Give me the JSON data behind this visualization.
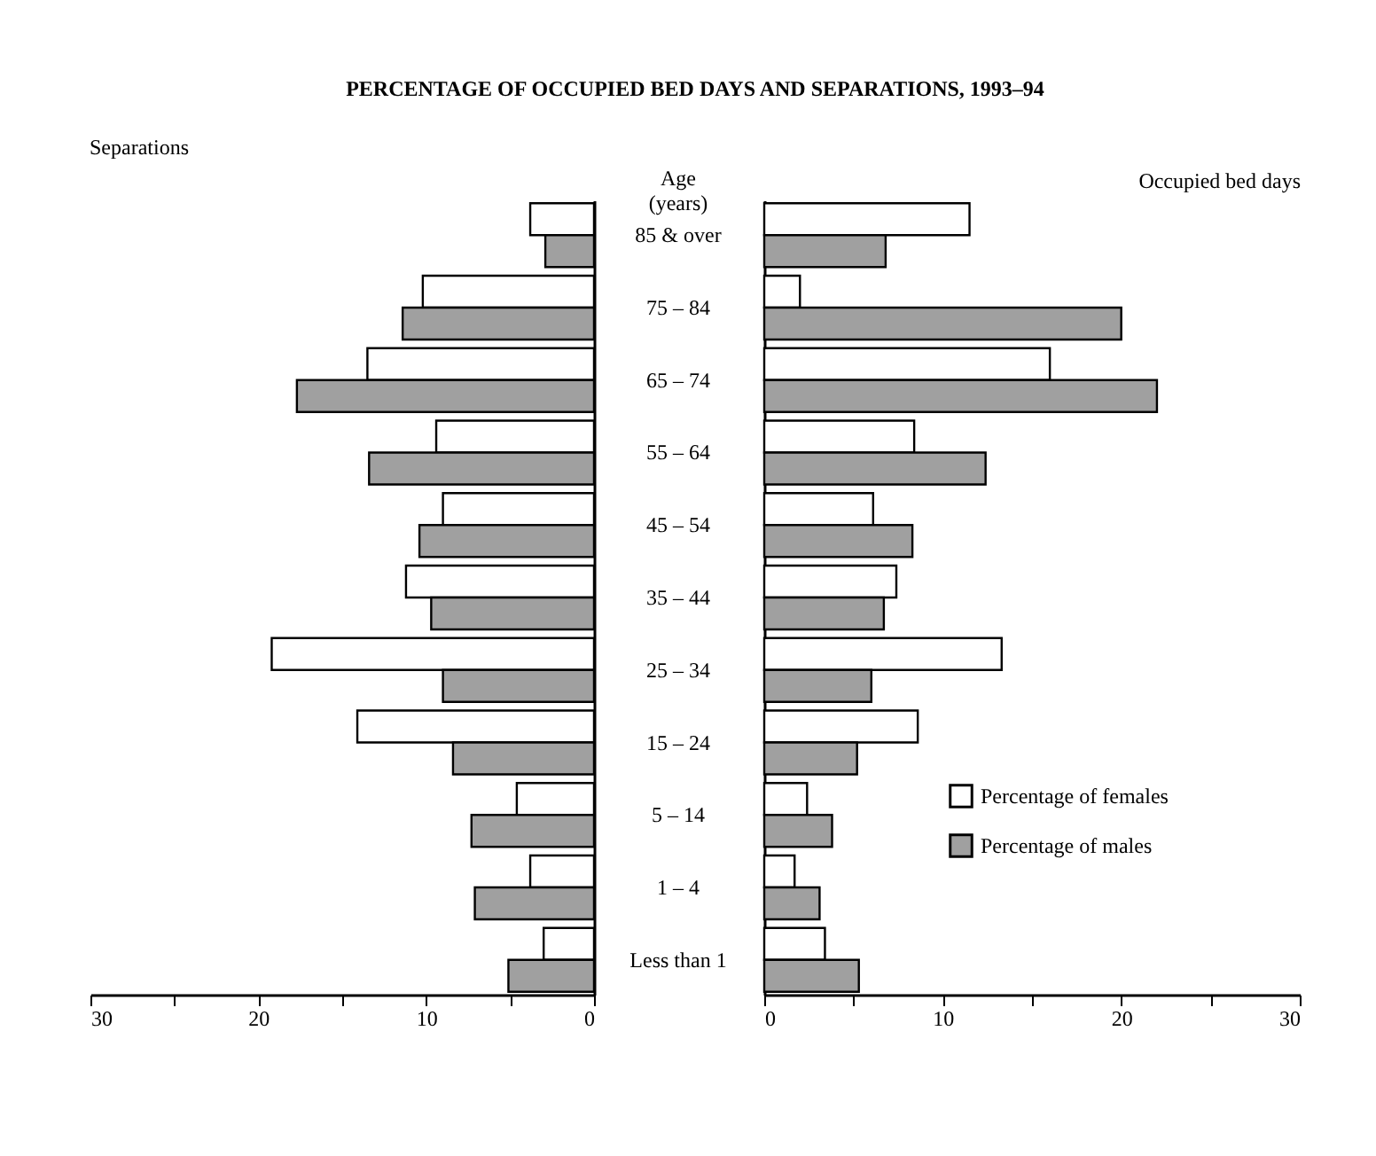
{
  "chart_data": [
    {
      "type": "bar",
      "orientation": "horizontal",
      "title": "PERCENTAGE OF OCCUPIED BED DAYS AND SEPARATIONS, 1993–94",
      "subtitle": "Separations",
      "ylabel": "Age (years)",
      "categories": [
        "85 & over",
        "75 – 84",
        "65 – 74",
        "55 – 64",
        "45 – 54",
        "35 – 44",
        "25 – 34",
        "15 – 24",
        "5 – 14",
        "1 – 4",
        "Less than 1"
      ],
      "series": [
        {
          "color": "#ffffff",
          "values": [
            3.8,
            10.2,
            13.5,
            9.4,
            9.0,
            11.2,
            19.2,
            14.1,
            4.6,
            3.8,
            3.0
          ]
        },
        {
          "color": "#a0a0a0",
          "values": [
            2.9,
            11.4,
            17.7,
            13.4,
            10.4,
            9.7,
            9.0,
            8.4,
            7.3,
            7.1,
            5.1
          ]
        }
      ],
      "xlim": [
        30,
        0
      ],
      "xticks": [
        30,
        {
          "value": 25,
          "label": null
        },
        20,
        {
          "value": 15,
          "label": null
        },
        10,
        {
          "value": 5,
          "label": null
        },
        0
      ]
    },
    {
      "type": "bar",
      "orientation": "horizontal",
      "subtitle": "Occupied bed days",
      "categories": [
        null,
        null,
        null,
        null,
        null,
        null,
        null,
        null,
        null,
        null,
        null
      ],
      "tick_labels": "x",
      "series": [
        {
          "name": "Percentage of females",
          "color": "#ffffff",
          "values": [
            11.5,
            2.0,
            16.0,
            8.4,
            6.1,
            7.4,
            13.3,
            8.6,
            2.4,
            1.7,
            3.4
          ]
        },
        {
          "name": "Percentage of males",
          "color": "#a0a0a0",
          "values": [
            6.8,
            20.0,
            22.0,
            12.4,
            8.3,
            6.7,
            6.0,
            5.2,
            3.8,
            3.1,
            5.3
          ]
        }
      ],
      "xlim": [
        0,
        30
      ],
      "xticks": [
        0,
        {
          "value": 5,
          "label": null
        },
        10,
        {
          "value": 15,
          "label": null
        },
        20,
        {
          "value": 25,
          "label": null
        },
        30
      ],
      "legend": "bottom right"
    }
  ]
}
